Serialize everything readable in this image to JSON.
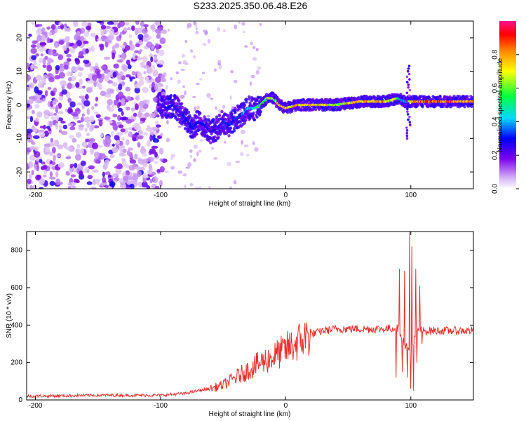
{
  "title": "S233.2025.350.06.48.E26",
  "chart_data": [
    {
      "type": "heatmap",
      "name": "spectrogram",
      "xlabel": "Height of straight line (km)",
      "ylabel": "Frequency (Hz)",
      "xlim": [
        -207,
        150
      ],
      "ylim": [
        -25,
        25
      ],
      "xticks": [
        -200,
        -100,
        0,
        100
      ],
      "yticks": [
        -20,
        -10,
        0,
        10,
        20
      ],
      "colorbar": {
        "label": "Normalized spectral amplitude",
        "range": [
          0,
          1
        ],
        "ticks": [
          0.0,
          0.2,
          0.4,
          0.6,
          0.8
        ]
      },
      "ridge": {
        "x": [
          -100,
          -95,
          -90,
          -85,
          -80,
          -75,
          -70,
          -65,
          -60,
          -55,
          -50,
          -45,
          -40,
          -35,
          -30,
          -25,
          -20,
          -15,
          -10,
          -5,
          0,
          10,
          20,
          40,
          60,
          80,
          90,
          95,
          100,
          110,
          130,
          150
        ],
        "y": [
          0,
          -1,
          0,
          -2,
          -4,
          -7,
          -5,
          -6,
          -8,
          -7,
          -5,
          -6,
          -4,
          -3,
          -1,
          -1,
          0,
          2,
          2,
          0,
          -1,
          0,
          0,
          0,
          1,
          1,
          2,
          1,
          1,
          1,
          1,
          1
        ],
        "amplitude": [
          0.25,
          0.3,
          0.3,
          0.3,
          0.3,
          0.3,
          0.3,
          0.3,
          0.3,
          0.25,
          0.3,
          0.35,
          0.35,
          0.4,
          0.45,
          0.5,
          0.6,
          0.7,
          0.7,
          0.8,
          0.75,
          0.85,
          0.8,
          0.75,
          0.8,
          0.85,
          0.6,
          0.4,
          0.8,
          0.9,
          0.9,
          0.9
        ]
      }
    },
    {
      "type": "line",
      "name": "snr",
      "xlabel": "Height of straight line (km)",
      "ylabel": "SNR (10 * v/v)",
      "xlim": [
        -207,
        150
      ],
      "ylim": [
        0,
        900
      ],
      "xticks": [
        -200,
        -100,
        0,
        100
      ],
      "yticks": [
        0,
        200,
        400,
        600,
        800
      ],
      "color": "#e8302a",
      "trend": {
        "x": [
          -207,
          -150,
          -100,
          -80,
          -70,
          -60,
          -50,
          -40,
          -30,
          -20,
          -10,
          0,
          10,
          20,
          30,
          40,
          60,
          80,
          90,
          95,
          100,
          105,
          110,
          130,
          150
        ],
        "y": [
          20,
          25,
          25,
          35,
          50,
          60,
          80,
          120,
          160,
          200,
          230,
          270,
          310,
          350,
          370,
          380,
          380,
          380,
          385,
          300,
          250,
          380,
          370,
          370,
          370
        ]
      },
      "spikes": [
        {
          "x": 88,
          "y": 120
        },
        {
          "x": 91,
          "y": 700
        },
        {
          "x": 93,
          "y": 150
        },
        {
          "x": 95,
          "y": 690
        },
        {
          "x": 97,
          "y": 120
        },
        {
          "x": 99,
          "y": 900
        },
        {
          "x": 100,
          "y": 60
        },
        {
          "x": 101,
          "y": 820
        },
        {
          "x": 102,
          "y": 50
        },
        {
          "x": 104,
          "y": 700
        },
        {
          "x": 105,
          "y": 200
        },
        {
          "x": 107,
          "y": 610
        },
        {
          "x": 109,
          "y": 300
        }
      ]
    }
  ]
}
